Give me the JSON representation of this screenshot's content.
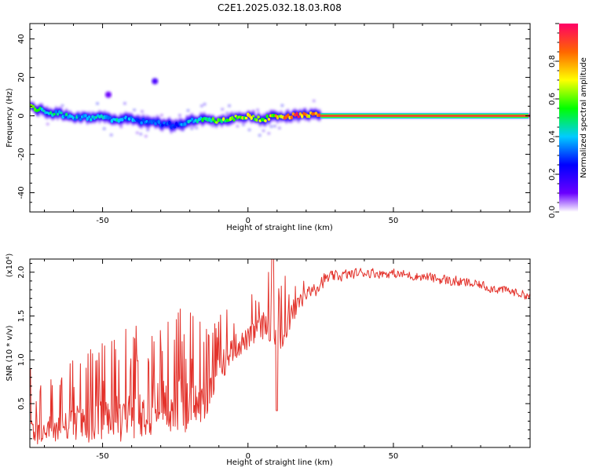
{
  "title": "C2E1.2025.032.18.03.R08",
  "colorbar": {
    "label": "Normalized spectral amplitude",
    "ticks": [
      "0.0",
      "0.2",
      "0.4",
      "0.6",
      "0.8"
    ],
    "tick_values": [
      0.0,
      0.2,
      0.4,
      0.6,
      0.8
    ]
  },
  "chart_data": [
    {
      "type": "heatmap",
      "xlabel": "Height of straight line (km)",
      "ylabel": "Frequency (Hz)",
      "xlim": [
        -75,
        97
      ],
      "ylim": [
        -50,
        48
      ],
      "x_ticks": [
        -50,
        0,
        50
      ],
      "x_tick_labels": [
        "-50",
        "0",
        "50"
      ],
      "y_ticks": [
        -40,
        -20,
        0,
        20,
        40
      ],
      "y_tick_labels": [
        "-40",
        "-20",
        "0",
        "20",
        "40"
      ],
      "ridge": {
        "x": [
          -75,
          -70,
          -65,
          -60,
          -55,
          -50,
          -45,
          -40,
          -35,
          -30,
          -25,
          -20,
          -15,
          -10,
          -5,
          0,
          5,
          10,
          15,
          20,
          25,
          97
        ],
        "freq": [
          5,
          2,
          1,
          -1,
          -1,
          -1,
          -2,
          -2,
          -3,
          -4,
          -5,
          -3,
          -2,
          -3,
          -1,
          0,
          -2,
          0,
          0,
          1,
          0,
          0
        ],
        "amplitude": [
          0.6,
          0.45,
          0.45,
          0.4,
          0.45,
          0.4,
          0.4,
          0.35,
          0.35,
          0.3,
          0.3,
          0.4,
          0.5,
          0.6,
          0.6,
          0.7,
          0.6,
          0.75,
          0.85,
          0.85,
          0.95,
          0.95
        ]
      },
      "spots": [
        {
          "x": -32,
          "freq": 18,
          "amplitude": 0.15
        },
        {
          "x": -48,
          "freq": 11,
          "amplitude": 0.1
        }
      ]
    },
    {
      "type": "line",
      "xlabel": "Height of straight line (km)",
      "ylabel": "SNR (10 * v/v)",
      "y_multiplier_label": "(x10⁴)",
      "color": "#e3322b",
      "xlim": [
        -75,
        97
      ],
      "ylim": [
        0,
        2.15
      ],
      "x_ticks": [
        -50,
        0,
        50
      ],
      "x_tick_labels": [
        "-50",
        "0",
        "50"
      ],
      "y_ticks": [
        0.5,
        1.0,
        1.5,
        2.0
      ],
      "y_tick_labels": [
        "0.5",
        "1.0",
        "1.5",
        "2.0"
      ],
      "envelope": {
        "x": [
          -75,
          -70,
          -60,
          -50,
          -40,
          -30,
          -25,
          -20,
          -15,
          -12,
          -10,
          -5,
          0,
          5,
          8,
          10,
          12,
          15,
          20,
          25,
          30,
          40,
          50,
          60,
          70,
          80,
          90,
          97
        ],
        "mean": [
          0.2,
          0.2,
          0.3,
          0.3,
          0.4,
          0.5,
          0.5,
          0.5,
          0.55,
          0.8,
          0.9,
          1.15,
          1.25,
          1.4,
          1.45,
          1.3,
          1.3,
          1.55,
          1.75,
          1.9,
          1.95,
          2.0,
          1.98,
          1.95,
          1.9,
          1.85,
          1.78,
          1.73
        ],
        "amp": [
          0.3,
          0.3,
          0.4,
          0.5,
          0.55,
          0.6,
          0.7,
          0.6,
          0.5,
          0.4,
          0.35,
          0.3,
          0.25,
          0.3,
          0.45,
          0.4,
          0.35,
          0.3,
          0.15,
          0.08,
          0.06,
          0.05,
          0.05,
          0.05,
          0.06,
          0.05,
          0.05,
          0.04
        ]
      },
      "features": [
        {
          "x": 8.5,
          "value": 2.15
        },
        {
          "x": 10,
          "value": 0.42
        },
        {
          "x": -75,
          "value": 0.9
        }
      ]
    }
  ]
}
